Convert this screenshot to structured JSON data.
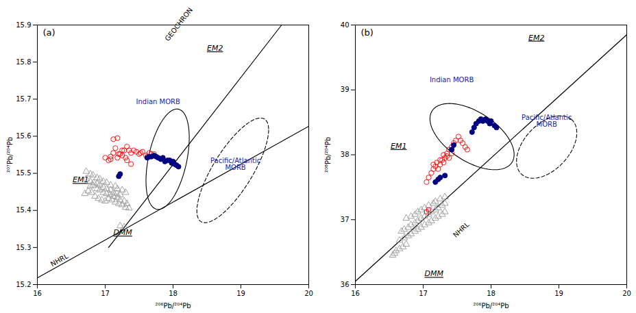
{
  "chart_data": [
    {
      "type": "scatter",
      "title": "(a)",
      "x_label": "²⁰⁶Pb/²⁰⁴Pb",
      "y_label": "²⁰⁷Pb/²⁰⁴Pb",
      "xlim": [
        16.0,
        20.0
      ],
      "ylim": [
        15.2,
        15.9
      ],
      "xticks": [
        16.0,
        17.0,
        18.0,
        19.0,
        20.0
      ],
      "yticks": [
        15.2,
        15.3,
        15.4,
        15.5,
        15.6,
        15.7,
        15.8,
        15.9
      ],
      "series": [
        {
          "type": "line",
          "name": "NHRL",
          "color": "#000000",
          "x": [
            16.0,
            20.0
          ],
          "y": [
            15.218,
            15.627
          ],
          "label_x": 16.22,
          "label_y": 15.248
        },
        {
          "type": "line",
          "name": "GEOCHRON",
          "color": "#000000",
          "x": [
            17.05,
            19.6
          ],
          "y": [
            15.3,
            15.9
          ],
          "label_x": 17.93,
          "label_y": 15.855
        },
        {
          "type": "ellipse",
          "name": "Indian MORB",
          "color": "#000000",
          "line_style": "solid",
          "cx": 17.92,
          "cy": 15.538,
          "width": 0.65,
          "height": 0.24,
          "angle": 12,
          "label_x": 17.78,
          "label_y": 15.693,
          "text_color": "#1a1aaa"
        },
        {
          "type": "ellipse",
          "name": "Pacific/Atlantic\nMORB",
          "color": "#000000",
          "line_style": "dashed",
          "cx": 18.88,
          "cy": 15.508,
          "width": 1.08,
          "height": 0.175,
          "angle": 12,
          "label_x": 18.92,
          "label_y": 15.525,
          "text_color": "#1a1aaa"
        },
        {
          "type": "scatter",
          "marker": "open_triangle",
          "color": "#999999",
          "values": [
            [
              16.7,
              15.445
            ],
            [
              16.75,
              15.452
            ],
            [
              16.8,
              15.448
            ],
            [
              16.85,
              15.438
            ],
            [
              16.9,
              15.432
            ],
            [
              16.95,
              15.428
            ],
            [
              17.0,
              15.425
            ],
            [
              17.05,
              15.432
            ],
            [
              17.1,
              15.428
            ],
            [
              17.15,
              15.422
            ],
            [
              17.2,
              15.418
            ],
            [
              17.25,
              15.415
            ],
            [
              17.3,
              15.408
            ],
            [
              17.35,
              15.406
            ],
            [
              16.78,
              15.465
            ],
            [
              16.82,
              15.468
            ],
            [
              16.88,
              15.458
            ],
            [
              16.92,
              15.455
            ],
            [
              16.97,
              15.448
            ],
            [
              17.02,
              15.445
            ],
            [
              17.07,
              15.442
            ],
            [
              17.12,
              15.438
            ],
            [
              17.18,
              15.435
            ],
            [
              17.22,
              15.428
            ],
            [
              17.28,
              15.425
            ],
            [
              17.32,
              15.418
            ],
            [
              16.72,
              15.485
            ],
            [
              16.78,
              15.478
            ],
            [
              16.83,
              15.475
            ],
            [
              16.88,
              15.472
            ],
            [
              16.92,
              15.468
            ],
            [
              16.97,
              15.462
            ],
            [
              17.02,
              15.458
            ],
            [
              17.08,
              15.455
            ],
            [
              17.12,
              15.448
            ],
            [
              17.17,
              15.445
            ],
            [
              17.22,
              15.442
            ],
            [
              16.72,
              15.505
            ],
            [
              16.78,
              15.498
            ],
            [
              16.82,
              15.495
            ],
            [
              16.88,
              15.488
            ],
            [
              16.92,
              15.485
            ],
            [
              16.97,
              15.478
            ],
            [
              17.02,
              15.475
            ],
            [
              17.08,
              15.468
            ],
            [
              17.15,
              15.465
            ],
            [
              17.18,
              15.458
            ],
            [
              17.25,
              15.455
            ],
            [
              17.3,
              15.448
            ],
            [
              17.22,
              15.358
            ],
            [
              17.28,
              15.355
            ]
          ]
        },
        {
          "type": "scatter",
          "marker": "open_circle",
          "color": "#ff0000",
          "values": [
            [
              17.12,
              15.555
            ],
            [
              17.15,
              15.568
            ],
            [
              17.22,
              15.552
            ],
            [
              17.25,
              15.548
            ],
            [
              17.28,
              15.562
            ],
            [
              17.32,
              15.572
            ],
            [
              17.35,
              15.562
            ],
            [
              17.38,
              15.555
            ],
            [
              17.42,
              15.562
            ],
            [
              17.46,
              15.558
            ],
            [
              17.5,
              15.552
            ],
            [
              17.52,
              15.555
            ],
            [
              17.55,
              15.558
            ],
            [
              17.6,
              15.548
            ],
            [
              17.62,
              15.545
            ],
            [
              17.65,
              15.555
            ],
            [
              17.68,
              15.552
            ],
            [
              17.72,
              15.552
            ],
            [
              17.0,
              15.542
            ],
            [
              17.05,
              15.535
            ],
            [
              17.08,
              15.545
            ],
            [
              17.18,
              15.542
            ],
            [
              17.2,
              15.552
            ],
            [
              17.25,
              15.562
            ],
            [
              17.3,
              15.542
            ],
            [
              17.32,
              15.535
            ],
            [
              17.38,
              15.525
            ],
            [
              17.12,
              15.592
            ],
            [
              17.18,
              15.595
            ],
            [
              17.08,
              15.538
            ]
          ]
        },
        {
          "type": "scatter",
          "marker": "filled_circle",
          "color": "#000080",
          "values": [
            [
              17.2,
              15.492
            ],
            [
              17.22,
              15.498
            ],
            [
              17.72,
              15.548
            ],
            [
              17.75,
              15.545
            ],
            [
              17.78,
              15.542
            ],
            [
              17.82,
              15.538
            ],
            [
              17.85,
              15.542
            ],
            [
              17.88,
              15.532
            ],
            [
              17.92,
              15.535
            ],
            [
              17.95,
              15.535
            ],
            [
              17.98,
              15.528
            ],
            [
              18.0,
              15.532
            ],
            [
              18.02,
              15.525
            ],
            [
              18.05,
              15.522
            ],
            [
              18.08,
              15.518
            ],
            [
              17.65,
              15.545
            ],
            [
              17.62,
              15.542
            ],
            [
              17.68,
              15.545
            ]
          ]
        }
      ],
      "end_members": [
        {
          "text": "EM2",
          "x": 18.5,
          "y": 15.845
        },
        {
          "text": "EM1",
          "x": 16.52,
          "y": 15.49
        },
        {
          "text": "DMM",
          "x": 17.12,
          "y": 15.348
        }
      ]
    },
    {
      "type": "scatter",
      "title": "(b)",
      "x_label": "²⁰⁶Pb/²⁰⁴Pb",
      "y_label": "²⁰⁸Pb/²⁰⁴Pb",
      "xlim": [
        16.0,
        20.0
      ],
      "ylim": [
        36.0,
        40.0
      ],
      "xticks": [
        16.0,
        17.0,
        18.0,
        19.0,
        20.0
      ],
      "yticks": [
        36.0,
        37.0,
        38.0,
        39.0,
        40.0
      ],
      "series": [
        {
          "type": "line",
          "name": "NHRL",
          "color": "#000000",
          "x": [
            16.0,
            20.0
          ],
          "y": [
            36.05,
            39.85
          ],
          "label_x": 17.48,
          "label_y": 36.72
        },
        {
          "type": "ellipse",
          "name": "Indian MORB",
          "color": "#000000",
          "line_style": "solid",
          "cx": 17.72,
          "cy": 38.28,
          "width": 0.75,
          "height": 1.42,
          "angle": 55,
          "label_x": 17.42,
          "label_y": 39.15,
          "text_color": "#1a1aaa"
        },
        {
          "type": "ellipse",
          "name": "Pacific/Atlantic\nMORB",
          "color": "#000000",
          "line_style": "dashed",
          "cx": 18.82,
          "cy": 38.12,
          "width": 1.12,
          "height": 0.68,
          "angle": 50,
          "label_x": 18.82,
          "label_y": 38.52,
          "text_color": "#1a1aaa"
        },
        {
          "type": "scatter",
          "marker": "open_triangle",
          "color": "#999999",
          "values": [
            [
              16.6,
              36.52
            ],
            [
              16.65,
              36.55
            ],
            [
              16.7,
              36.58
            ],
            [
              16.75,
              36.62
            ],
            [
              16.55,
              36.45
            ],
            [
              16.58,
              36.48
            ],
            [
              16.65,
              36.68
            ],
            [
              16.72,
              36.72
            ],
            [
              16.78,
              36.75
            ],
            [
              16.82,
              36.78
            ],
            [
              16.88,
              36.82
            ],
            [
              16.92,
              36.85
            ],
            [
              16.97,
              36.88
            ],
            [
              17.02,
              36.92
            ],
            [
              17.08,
              36.95
            ],
            [
              17.12,
              36.98
            ],
            [
              17.18,
              37.02
            ],
            [
              17.22,
              37.05
            ],
            [
              17.28,
              37.08
            ],
            [
              17.32,
              37.12
            ],
            [
              16.68,
              36.82
            ],
            [
              16.72,
              36.85
            ],
            [
              16.78,
              36.88
            ],
            [
              16.82,
              36.92
            ],
            [
              16.88,
              36.95
            ],
            [
              16.92,
              36.98
            ],
            [
              16.97,
              37.02
            ],
            [
              17.02,
              37.05
            ],
            [
              17.08,
              37.08
            ],
            [
              17.12,
              37.12
            ],
            [
              17.18,
              37.15
            ],
            [
              17.22,
              37.18
            ],
            [
              17.28,
              37.22
            ],
            [
              17.32,
              37.25
            ],
            [
              16.75,
              37.02
            ],
            [
              16.82,
              37.05
            ],
            [
              16.88,
              37.08
            ],
            [
              16.92,
              37.12
            ],
            [
              16.97,
              37.15
            ],
            [
              17.02,
              37.18
            ],
            [
              17.08,
              37.22
            ],
            [
              17.15,
              37.25
            ],
            [
              17.18,
              37.28
            ],
            [
              17.25,
              37.32
            ],
            [
              17.32,
              37.35
            ]
          ]
        },
        {
          "type": "scatter",
          "marker": "open_circle",
          "color": "#ff0000",
          "values": [
            [
              17.3,
              37.88
            ],
            [
              17.32,
              37.95
            ],
            [
              17.35,
              38.02
            ],
            [
              17.38,
              38.08
            ],
            [
              17.42,
              38.12
            ],
            [
              17.45,
              38.18
            ],
            [
              17.48,
              38.22
            ],
            [
              17.52,
              38.28
            ],
            [
              17.55,
              38.22
            ],
            [
              17.58,
              38.18
            ],
            [
              17.62,
              38.12
            ],
            [
              17.65,
              38.08
            ],
            [
              17.22,
              37.78
            ],
            [
              17.25,
              37.85
            ],
            [
              17.28,
              37.92
            ],
            [
              17.12,
              37.72
            ],
            [
              17.15,
              37.78
            ],
            [
              17.18,
              37.82
            ],
            [
              17.08,
              37.65
            ],
            [
              17.05,
              37.58
            ],
            [
              17.38,
              37.95
            ],
            [
              17.42,
              38.02
            ],
            [
              17.15,
              37.85
            ],
            [
              17.2,
              37.88
            ],
            [
              17.25,
              37.92
            ],
            [
              17.3,
              38.0
            ],
            [
              17.35,
              37.98
            ]
          ]
        },
        {
          "type": "scatter",
          "marker": "open_square",
          "color": "#ff0000",
          "values": [
            [
              17.05,
              37.12
            ],
            [
              17.08,
              37.15
            ]
          ]
        },
        {
          "type": "scatter",
          "marker": "filled_circle",
          "color": "#000080",
          "values": [
            [
              17.42,
              38.08
            ],
            [
              17.45,
              38.15
            ],
            [
              17.72,
              38.35
            ],
            [
              17.75,
              38.42
            ],
            [
              17.78,
              38.48
            ],
            [
              17.82,
              38.52
            ],
            [
              17.85,
              38.55
            ],
            [
              17.88,
              38.52
            ],
            [
              17.92,
              38.55
            ],
            [
              17.95,
              38.52
            ],
            [
              17.98,
              38.48
            ],
            [
              18.0,
              38.52
            ],
            [
              18.05,
              38.45
            ],
            [
              18.08,
              38.42
            ],
            [
              17.32,
              37.68
            ],
            [
              17.22,
              37.62
            ],
            [
              17.18,
              37.58
            ],
            [
              17.25,
              37.65
            ]
          ]
        }
      ],
      "end_members": [
        {
          "text": "EM2",
          "x": 18.55,
          "y": 39.85
        },
        {
          "text": "EM1",
          "x": 16.52,
          "y": 38.18
        },
        {
          "text": "DMM",
          "x": 17.02,
          "y": 36.21
        }
      ]
    }
  ]
}
